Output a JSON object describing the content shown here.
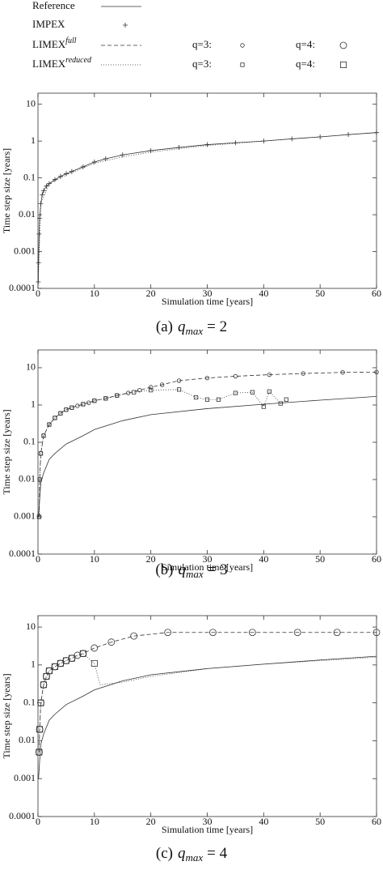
{
  "legend": {
    "entries": [
      {
        "label": "Reference",
        "line": "solid"
      },
      {
        "label": "IMPEX",
        "marker": "plus"
      },
      {
        "label": "LIMEX",
        "superscript": "full",
        "line": "dashed",
        "q3": "q=3:",
        "q3_marker": "circle-small",
        "q4": "q=4:",
        "q4_marker": "circle-large"
      },
      {
        "label": "LIMEX",
        "superscript": "reduced",
        "line": "dotted",
        "q3": "q=3:",
        "q3_marker": "square-small",
        "q4": "q=4:",
        "q4_marker": "square-large"
      }
    ]
  },
  "chart_data": [
    {
      "type": "line",
      "xlabel": "Simulation time [years]",
      "ylabel": "Time step size [years]",
      "log_y": true,
      "caption": {
        "label": "(a)",
        "symbol": "q",
        "subscript": "max",
        "relation": "= 2"
      },
      "xlim": [
        0,
        60
      ],
      "xticks": [
        0,
        10,
        20,
        30,
        40,
        50,
        60
      ],
      "ylim": [
        0.0001,
        20
      ],
      "yticks": [
        0.0001,
        0.001,
        0.01,
        0.1,
        1,
        10
      ],
      "series": [
        {
          "line": "solid",
          "marker": "none",
          "x": [
            0.05,
            0.1,
            0.2,
            0.3,
            0.5,
            0.75,
            1,
            1.5,
            2,
            3,
            4,
            5,
            6,
            8,
            10,
            12,
            15,
            20,
            25,
            30,
            35,
            40,
            45,
            50,
            55,
            60
          ],
          "values": [
            0.00015,
            0.0005,
            0.003,
            0.008,
            0.02,
            0.035,
            0.045,
            0.06,
            0.07,
            0.09,
            0.11,
            0.13,
            0.15,
            0.2,
            0.27,
            0.33,
            0.42,
            0.55,
            0.67,
            0.8,
            0.9,
            1.0,
            1.15,
            1.3,
            1.5,
            1.7
          ]
        },
        {
          "line": "none",
          "marker": "plus",
          "x": [
            0.05,
            0.1,
            0.2,
            0.3,
            0.5,
            0.75,
            1,
            1.5,
            2,
            3,
            4,
            5,
            6,
            8,
            10,
            12,
            15,
            20,
            25,
            30,
            35,
            40,
            45,
            50,
            55,
            60
          ],
          "values": [
            0.00015,
            0.0005,
            0.003,
            0.008,
            0.02,
            0.035,
            0.045,
            0.06,
            0.07,
            0.09,
            0.11,
            0.13,
            0.15,
            0.2,
            0.27,
            0.33,
            0.42,
            0.55,
            0.67,
            0.8,
            0.9,
            1.0,
            1.15,
            1.3,
            1.5,
            1.7
          ]
        },
        {
          "line": "dotted",
          "marker": "none",
          "x": [
            0.05,
            0.5,
            2,
            5,
            10,
            15,
            20,
            25,
            30,
            40,
            50,
            60
          ],
          "values": [
            0.00015,
            0.02,
            0.07,
            0.12,
            0.25,
            0.37,
            0.5,
            0.62,
            0.76,
            1.0,
            1.3,
            1.7
          ]
        }
      ]
    },
    {
      "type": "line",
      "xlabel": "Simulation time [years]",
      "ylabel": "Time step size [years]",
      "log_y": true,
      "caption": {
        "label": "(b)",
        "symbol": "q",
        "subscript": "max",
        "relation": "= 3"
      },
      "xlim": [
        0,
        60
      ],
      "xticks": [
        0,
        10,
        20,
        30,
        40,
        50,
        60
      ],
      "ylim": [
        0.0001,
        30
      ],
      "yticks": [
        0.0001,
        0.001,
        0.01,
        0.1,
        1,
        10
      ],
      "series": [
        {
          "line": "solid",
          "marker": "none",
          "x": [
            0.1,
            0.3,
            0.5,
            1,
            2,
            3,
            5,
            8,
            10,
            15,
            20,
            30,
            40,
            50,
            60
          ],
          "values": [
            0.001,
            0.003,
            0.008,
            0.015,
            0.035,
            0.05,
            0.09,
            0.15,
            0.22,
            0.38,
            0.55,
            0.8,
            1.05,
            1.35,
            1.7
          ]
        },
        {
          "line": "dashed",
          "marker": "circle-small",
          "x": [
            0.2,
            0.3,
            0.5,
            1,
            2,
            3,
            4,
            5,
            6,
            7,
            8,
            9,
            10,
            12,
            14,
            16,
            18,
            20,
            22,
            25,
            30,
            35,
            41,
            47,
            54,
            60
          ],
          "values": [
            0.001,
            0.01,
            0.05,
            0.15,
            0.3,
            0.45,
            0.6,
            0.75,
            0.85,
            0.95,
            1.05,
            1.15,
            1.3,
            1.5,
            1.8,
            2.1,
            2.5,
            3,
            3.5,
            4.5,
            5.3,
            5.9,
            6.5,
            7,
            7.5,
            7.6
          ]
        },
        {
          "line": "dotted",
          "marker": "square-small",
          "x": [
            0.2,
            0.3,
            0.5,
            1,
            2,
            3,
            4,
            5,
            6,
            8,
            10,
            12,
            14,
            17,
            20,
            25,
            28,
            30,
            32,
            35,
            38,
            40,
            41,
            43,
            44
          ],
          "values": [
            0.001,
            0.01,
            0.05,
            0.15,
            0.3,
            0.45,
            0.6,
            0.75,
            0.85,
            1.05,
            1.3,
            1.5,
            1.8,
            2.2,
            2.5,
            2.6,
            1.6,
            1.4,
            1.4,
            2.1,
            2.2,
            0.9,
            2.3,
            1.1,
            1.4
          ]
        }
      ]
    },
    {
      "type": "line",
      "xlabel": "Simulation time [years]",
      "ylabel": "Time step size [years]",
      "log_y": true,
      "caption": {
        "label": "(c)",
        "symbol": "q",
        "subscript": "max",
        "relation": "= 4"
      },
      "xlim": [
        0,
        60
      ],
      "xticks": [
        0,
        10,
        20,
        30,
        40,
        50,
        60
      ],
      "ylim": [
        0.0001,
        20
      ],
      "yticks": [
        0.0001,
        0.001,
        0.01,
        0.1,
        1,
        10
      ],
      "series": [
        {
          "line": "solid",
          "marker": "none",
          "x": [
            0.1,
            0.3,
            0.5,
            1,
            2,
            3,
            5,
            8,
            10,
            15,
            20,
            30,
            40,
            50,
            60
          ],
          "values": [
            0.001,
            0.003,
            0.008,
            0.015,
            0.035,
            0.05,
            0.09,
            0.15,
            0.22,
            0.38,
            0.55,
            0.8,
            1.05,
            1.35,
            1.7
          ]
        },
        {
          "line": "dashed",
          "marker": "circle-large",
          "x": [
            0.2,
            0.3,
            0.5,
            1,
            1.5,
            2,
            3,
            4,
            5,
            6,
            7,
            8,
            10,
            13,
            17,
            23,
            31,
            38,
            46,
            53,
            60
          ],
          "values": [
            0.005,
            0.02,
            0.1,
            0.3,
            0.5,
            0.7,
            0.9,
            1.1,
            1.3,
            1.5,
            1.8,
            2,
            2.8,
            4,
            5.8,
            7.2,
            7.2,
            7.2,
            7.2,
            7.2,
            7.2
          ]
        },
        {
          "line": "dotted",
          "marker": "square-large",
          "x": [
            0.2,
            0.3,
            0.5,
            1,
            1.5,
            2,
            3,
            4,
            5,
            6,
            8,
            10
          ],
          "values": [
            0.005,
            0.02,
            0.1,
            0.3,
            0.5,
            0.7,
            0.9,
            1.1,
            1.3,
            1.5,
            2,
            1.1
          ]
        },
        {
          "line": "dotted",
          "marker": "none",
          "x": [
            10,
            11,
            15,
            20,
            30,
            40,
            50,
            60
          ],
          "values": [
            1.1,
            0.3,
            0.35,
            0.5,
            0.8,
            1.05,
            1.3,
            1.6
          ]
        }
      ]
    }
  ]
}
